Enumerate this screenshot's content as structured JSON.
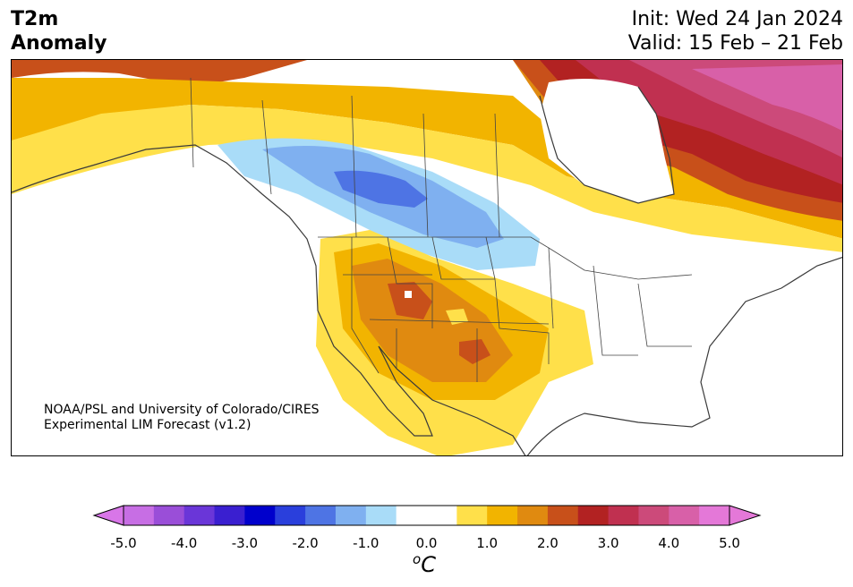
{
  "header": {
    "title_line1": "T2m",
    "title_line2": "Anomaly",
    "init": "Init: Wed 24 Jan 2024",
    "valid": "Valid: 15 Feb – 21 Feb"
  },
  "credit": {
    "line1": "NOAA/PSL and University of Colorado/CIRES",
    "line2": "Experimental LIM Forecast (v1.2)"
  },
  "colorbar": {
    "unit": "C",
    "unit_prefix": "o",
    "ticks": [
      "-5.0",
      "-4.0",
      "-3.0",
      "-2.0",
      "-1.0",
      "0.0",
      "1.0",
      "2.0",
      "3.0",
      "4.0",
      "5.0"
    ],
    "colors": [
      "#c76ee4",
      "#9a4ed8",
      "#6a36d8",
      "#3a1fd0",
      "#0000cc",
      "#2a3fdc",
      "#4e74e4",
      "#7fb0f0",
      "#a9dcf8",
      "#ffffff",
      "#ffffff",
      "#ffe04a",
      "#f2b400",
      "#e08a10",
      "#c8501a",
      "#b22222",
      "#c03050",
      "#cc4a7a",
      "#d860a8",
      "#e478d8"
    ],
    "under_color": "#d876e8",
    "over_color": "#e478d8"
  },
  "map": {
    "region": "North America",
    "variable": "2m temperature anomaly",
    "colors": {
      "cold_light": "#a9dcf8",
      "cold_mid": "#7fb0f0",
      "cold_dark": "#4e74e4",
      "warm_1": "#ffe04a",
      "warm_2": "#f2b400",
      "warm_3": "#e08a10",
      "warm_4": "#c8501a",
      "warm_5": "#b22222",
      "warm_6": "#c03050",
      "warm_7": "#cc4a7a",
      "warm_8": "#d860a8"
    }
  }
}
